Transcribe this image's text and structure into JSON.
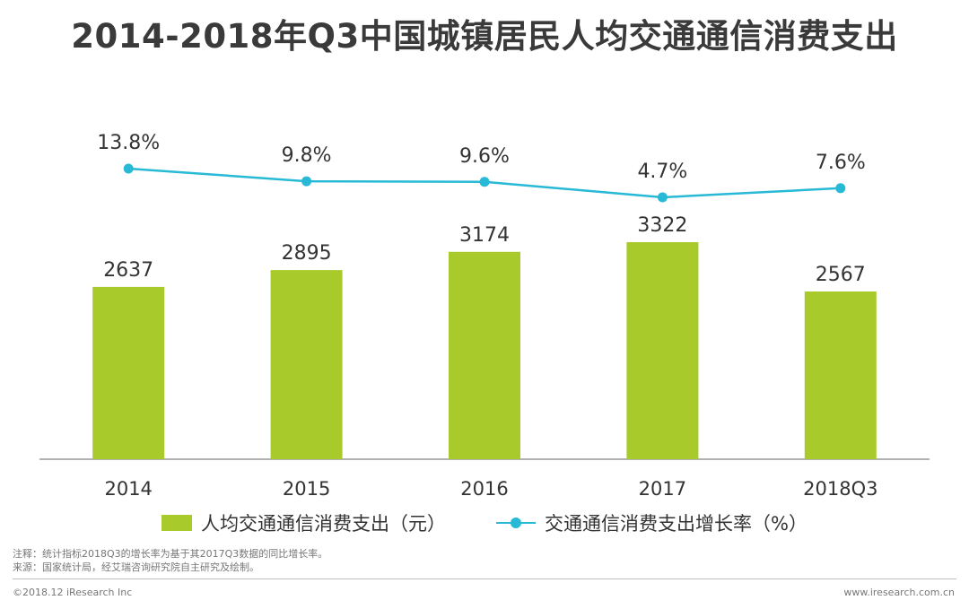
{
  "title": "2014-2018年Q3中国城镇居民人均交通通信消费支出",
  "legend": {
    "bar_label": "人均交通通信消费支出（元）",
    "line_label": "交通通信消费支出增长率（%）"
  },
  "notes": {
    "note": "注释：统计指标2018Q3的增长率为基于其2017Q3数据的同比增长率。",
    "source": "来源：国家统计局，经艾瑞咨询研究院自主研究及绘制。"
  },
  "footer": {
    "copyright": "©2018.12 iResearch Inc",
    "website": "www.iresearch.com.cn"
  },
  "colors": {
    "bar": "#a8cb2b",
    "line": "#27b9d6"
  },
  "chart_data": {
    "type": "bar",
    "categories": [
      "2014",
      "2015",
      "2016",
      "2017",
      "2018Q3"
    ],
    "series": [
      {
        "name": "人均交通通信消费支出（元）",
        "type": "bar",
        "values": [
          2637,
          2895,
          3174,
          3322,
          2567
        ]
      },
      {
        "name": "交通通信消费支出增长率（%）",
        "type": "line",
        "values": [
          13.8,
          9.8,
          9.6,
          4.7,
          7.6
        ],
        "labels": [
          "13.8%",
          "9.8%",
          "9.6%",
          "4.7%",
          "7.6%"
        ]
      }
    ],
    "grid": false,
    "legend_position": "bottom"
  }
}
